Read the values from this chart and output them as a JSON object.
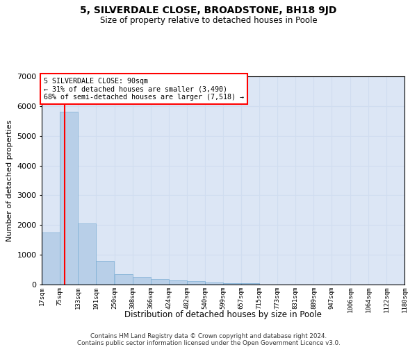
{
  "title_line1": "5, SILVERDALE CLOSE, BROADSTONE, BH18 9JD",
  "title_line2": "Size of property relative to detached houses in Poole",
  "xlabel": "Distribution of detached houses by size in Poole",
  "ylabel": "Number of detached properties",
  "footer_line1": "Contains HM Land Registry data © Crown copyright and database right 2024.",
  "footer_line2": "Contains public sector information licensed under the Open Government Licence v3.0.",
  "annotation_line1": "5 SILVERDALE CLOSE: 90sqm",
  "annotation_line2": "← 31% of detached houses are smaller (3,490)",
  "annotation_line3": "68% of semi-detached houses are larger (7,518) →",
  "red_line_x": 90,
  "bar_color": "#b8cfe8",
  "bar_edge_color": "#7aadd4",
  "grid_color": "#d0ddf0",
  "background_color": "#dce6f5",
  "bins": [
    17,
    75,
    133,
    191,
    250,
    308,
    366,
    424,
    482,
    540,
    599,
    657,
    715,
    773,
    831,
    889,
    947,
    1006,
    1064,
    1122,
    1180
  ],
  "values": [
    1750,
    5800,
    2050,
    800,
    350,
    250,
    195,
    130,
    110,
    65,
    55,
    45,
    0,
    0,
    0,
    0,
    0,
    0,
    0,
    0
  ],
  "ylim": [
    0,
    7000
  ],
  "yticks": [
    0,
    1000,
    2000,
    3000,
    4000,
    5000,
    6000,
    7000
  ]
}
